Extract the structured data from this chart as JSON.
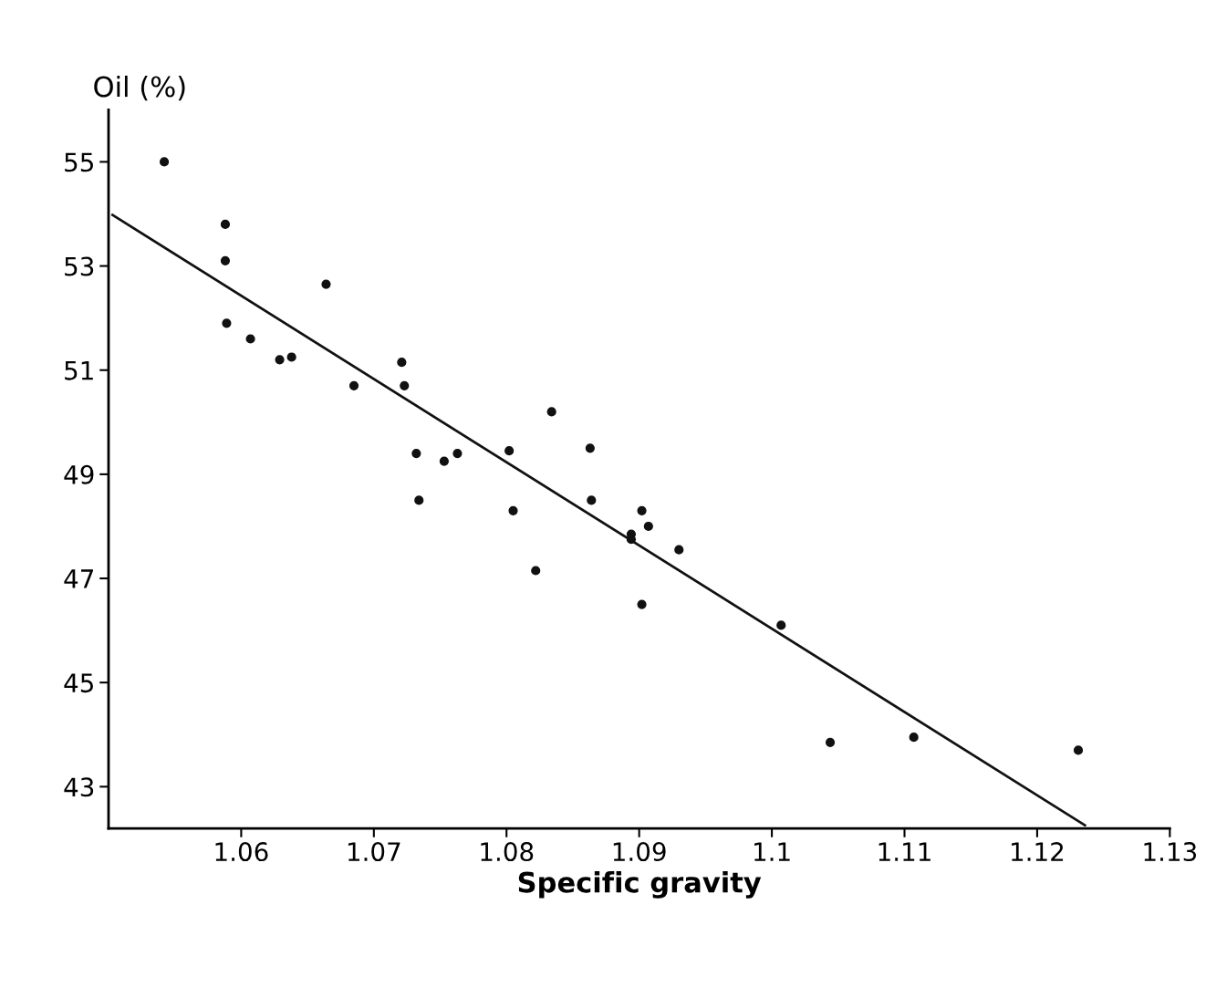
{
  "chart_data": {
    "type": "scatter",
    "xlabel": "Specific gravity",
    "ylabel": "Oil (%)",
    "xlim": [
      1.05,
      1.13
    ],
    "ylim": [
      42.2,
      56
    ],
    "xticks": [
      1.06,
      1.07,
      1.08,
      1.09,
      {
        "value": 1.1,
        "label": "1.1"
      },
      1.11,
      1.12,
      1.13
    ],
    "yticks": [
      43,
      45,
      47,
      49,
      51,
      53,
      55
    ],
    "grid": false,
    "legend": false,
    "series": [
      {
        "marker": "circle",
        "color": "#111111",
        "x": [
          1.0542,
          1.0588,
          1.0588,
          1.0589,
          1.0607,
          1.0629,
          1.0638,
          1.0664,
          1.0685,
          1.0721,
          1.0723,
          1.0834,
          1.0732,
          1.0753,
          1.0763,
          1.0802,
          1.0863,
          1.0734,
          1.0805,
          1.0864,
          1.0902,
          1.0907,
          1.0894,
          1.0894,
          1.093,
          1.0822,
          1.0902,
          1.1007,
          1.1044,
          1.1107,
          1.1231
        ],
        "values": [
          55.0,
          53.8,
          53.1,
          51.9,
          51.6,
          51.2,
          51.25,
          52.65,
          50.7,
          51.15,
          50.7,
          50.2,
          49.4,
          49.25,
          49.4,
          49.45,
          49.5,
          48.5,
          48.3,
          48.5,
          48.3,
          48.0,
          47.85,
          47.75,
          47.55,
          47.15,
          46.5,
          46.1,
          43.85,
          43.95,
          43.7
        ]
      },
      {
        "type": "line",
        "marker": "none",
        "color": "#111111",
        "x": [
          1.0503,
          1.1236
        ],
        "values": [
          53.98,
          42.26
        ]
      }
    ]
  }
}
